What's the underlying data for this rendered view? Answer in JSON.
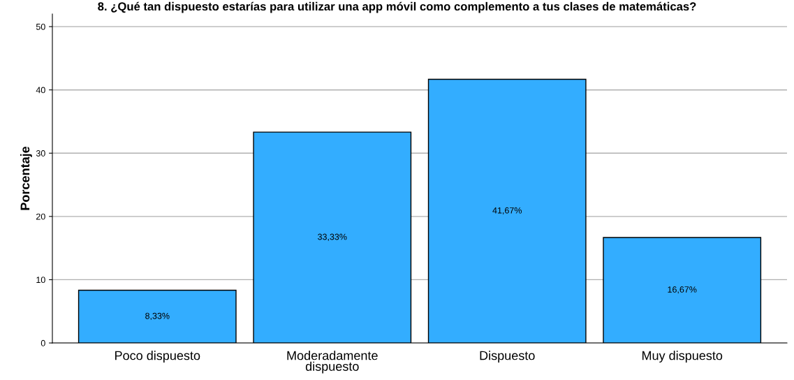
{
  "chart_data": {
    "type": "bar",
    "title": "8. ¿Qué tan dispuesto estarías para utilizar una app móvil como complemento a tus clases de matemáticas?",
    "ylabel": "Porcentaje",
    "categories": [
      "Poco dispuesto",
      "Moderadamente\ndispuesto",
      "Dispuesto",
      "Muy dispuesto"
    ],
    "values": [
      8.33,
      33.33,
      41.67,
      16.67
    ],
    "value_labels": [
      "8,33%",
      "33,33%",
      "41,67%",
      "16,67%"
    ],
    "color": "#33adff",
    "ylim": [
      0,
      52
    ],
    "yticks": [
      0,
      10,
      20,
      30,
      40,
      50
    ],
    "grid": "y"
  }
}
